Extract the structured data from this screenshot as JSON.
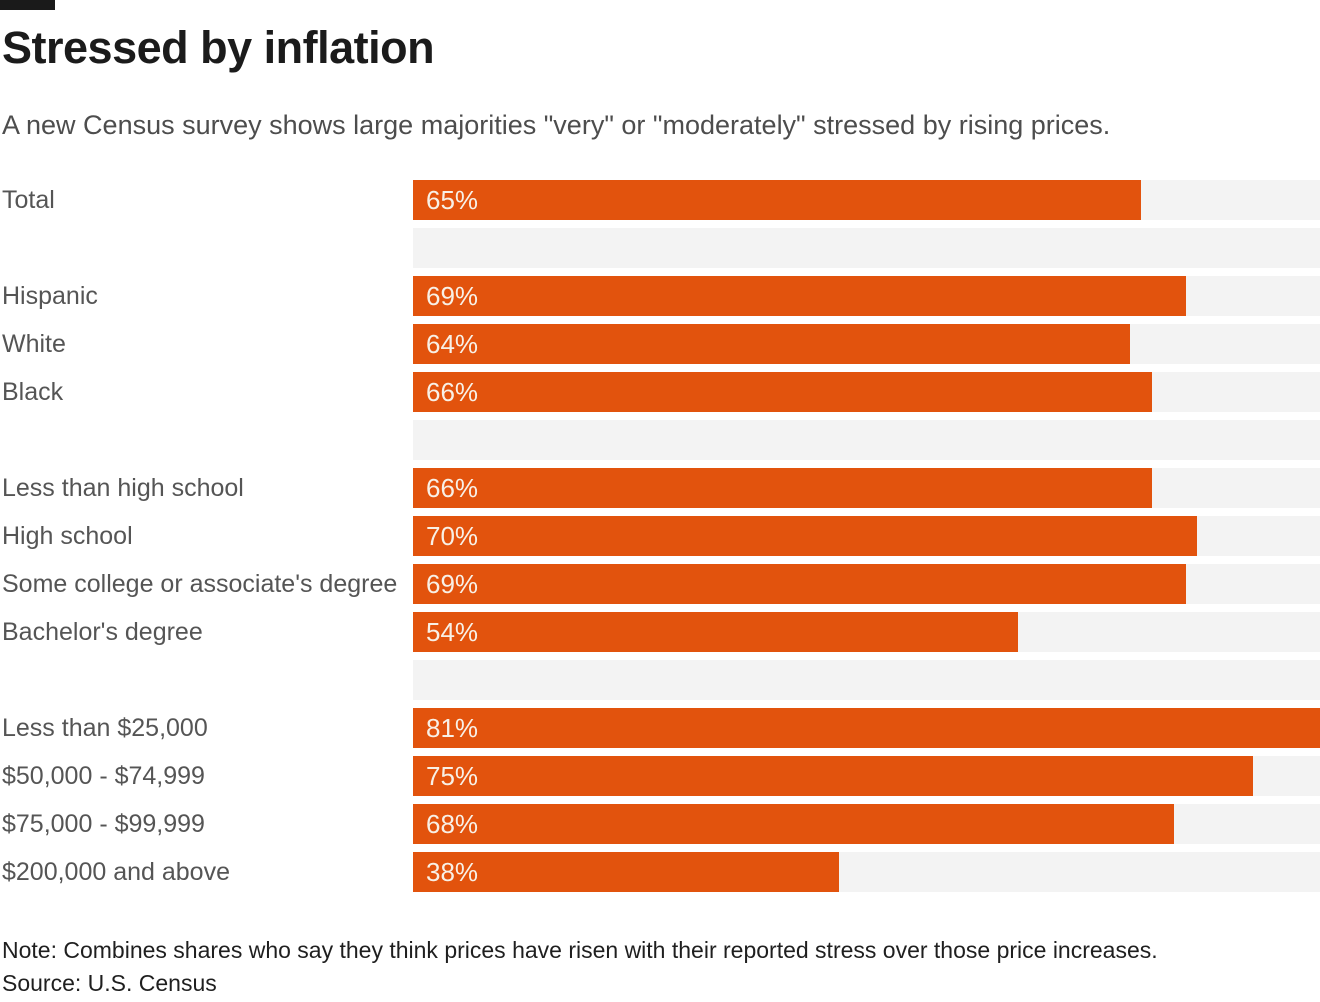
{
  "colors": {
    "bar": "#E2530D",
    "track": "#F3F3F3",
    "brand_mark": "#1A1A1A"
  },
  "header": {
    "title": "Stressed by inflation",
    "subtitle": "A new Census survey shows large majorities \"very\" or \"moderately\" stressed by rising prices."
  },
  "chart_data": {
    "type": "bar",
    "orientation": "horizontal",
    "title": "Stressed by inflation",
    "unit": "%",
    "xlim": [
      0,
      81
    ],
    "grid": false,
    "legend": false,
    "value_suffix": "%",
    "groups": [
      {
        "name": "total",
        "categories": [
          "Total"
        ],
        "values": [
          65
        ]
      },
      {
        "name": "race_ethnicity",
        "categories": [
          "Hispanic",
          "White",
          "Black"
        ],
        "values": [
          69,
          64,
          66
        ]
      },
      {
        "name": "education",
        "categories": [
          "Less than high school",
          "High school",
          "Some college or associate's degree",
          "Bachelor's degree"
        ],
        "values": [
          66,
          70,
          69,
          54
        ]
      },
      {
        "name": "income",
        "categories": [
          "Less than $25,000",
          "$50,000 - $74,999",
          "$75,000 - $99,999",
          "$200,000 and above"
        ],
        "values": [
          81,
          75,
          68,
          38
        ]
      }
    ]
  },
  "footer": {
    "note": "Note: Combines shares who say they think prices have risen with their reported stress over those price increases.",
    "source": "Source: U.S. Census"
  }
}
